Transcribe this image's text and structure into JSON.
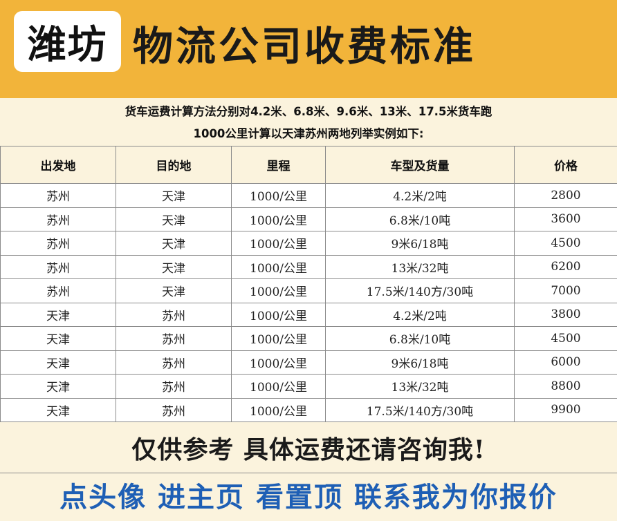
{
  "header": {
    "city": "潍坊",
    "title": "物流公司收费标准"
  },
  "description": {
    "line1": "货车运费计算方法分别对4.2米、6.8米、9.6米、13米、17.5米货车跑",
    "line2": "1000公里计算以天津苏州两地列举实例如下:"
  },
  "table": {
    "headers": [
      "出发地",
      "目的地",
      "里程",
      "车型及货量",
      "价格"
    ],
    "rows": [
      [
        "苏州",
        "天津",
        "1000/公里",
        "4.2米/2吨",
        "2800"
      ],
      [
        "苏州",
        "天津",
        "1000/公里",
        "6.8米/10吨",
        "3600"
      ],
      [
        "苏州",
        "天津",
        "1000/公里",
        "9米6/18吨",
        "4500"
      ],
      [
        "苏州",
        "天津",
        "1000/公里",
        "13米/32吨",
        "6200"
      ],
      [
        "苏州",
        "天津",
        "1000/公里",
        "17.5米/140方/30吨",
        "7000"
      ],
      [
        "天津",
        "苏州",
        "1000/公里",
        "4.2米/2吨",
        "3800"
      ],
      [
        "天津",
        "苏州",
        "1000/公里",
        "6.8米/10吨",
        "4500"
      ],
      [
        "天津",
        "苏州",
        "1000/公里",
        "9米6/18吨",
        "6000"
      ],
      [
        "天津",
        "苏州",
        "1000/公里",
        "13米/32吨",
        "8800"
      ],
      [
        "天津",
        "苏州",
        "1000/公里",
        "17.5米/140方/30吨",
        "9900"
      ]
    ]
  },
  "note": "仅供参考 具体运费还请咨询我!",
  "cta": "点头像 进主页 看置顶 联系我为你报价",
  "colors": {
    "header_bg": "#f2b43a",
    "page_bg": "#fbf3dd",
    "cta_text": "#1e5fb5"
  }
}
